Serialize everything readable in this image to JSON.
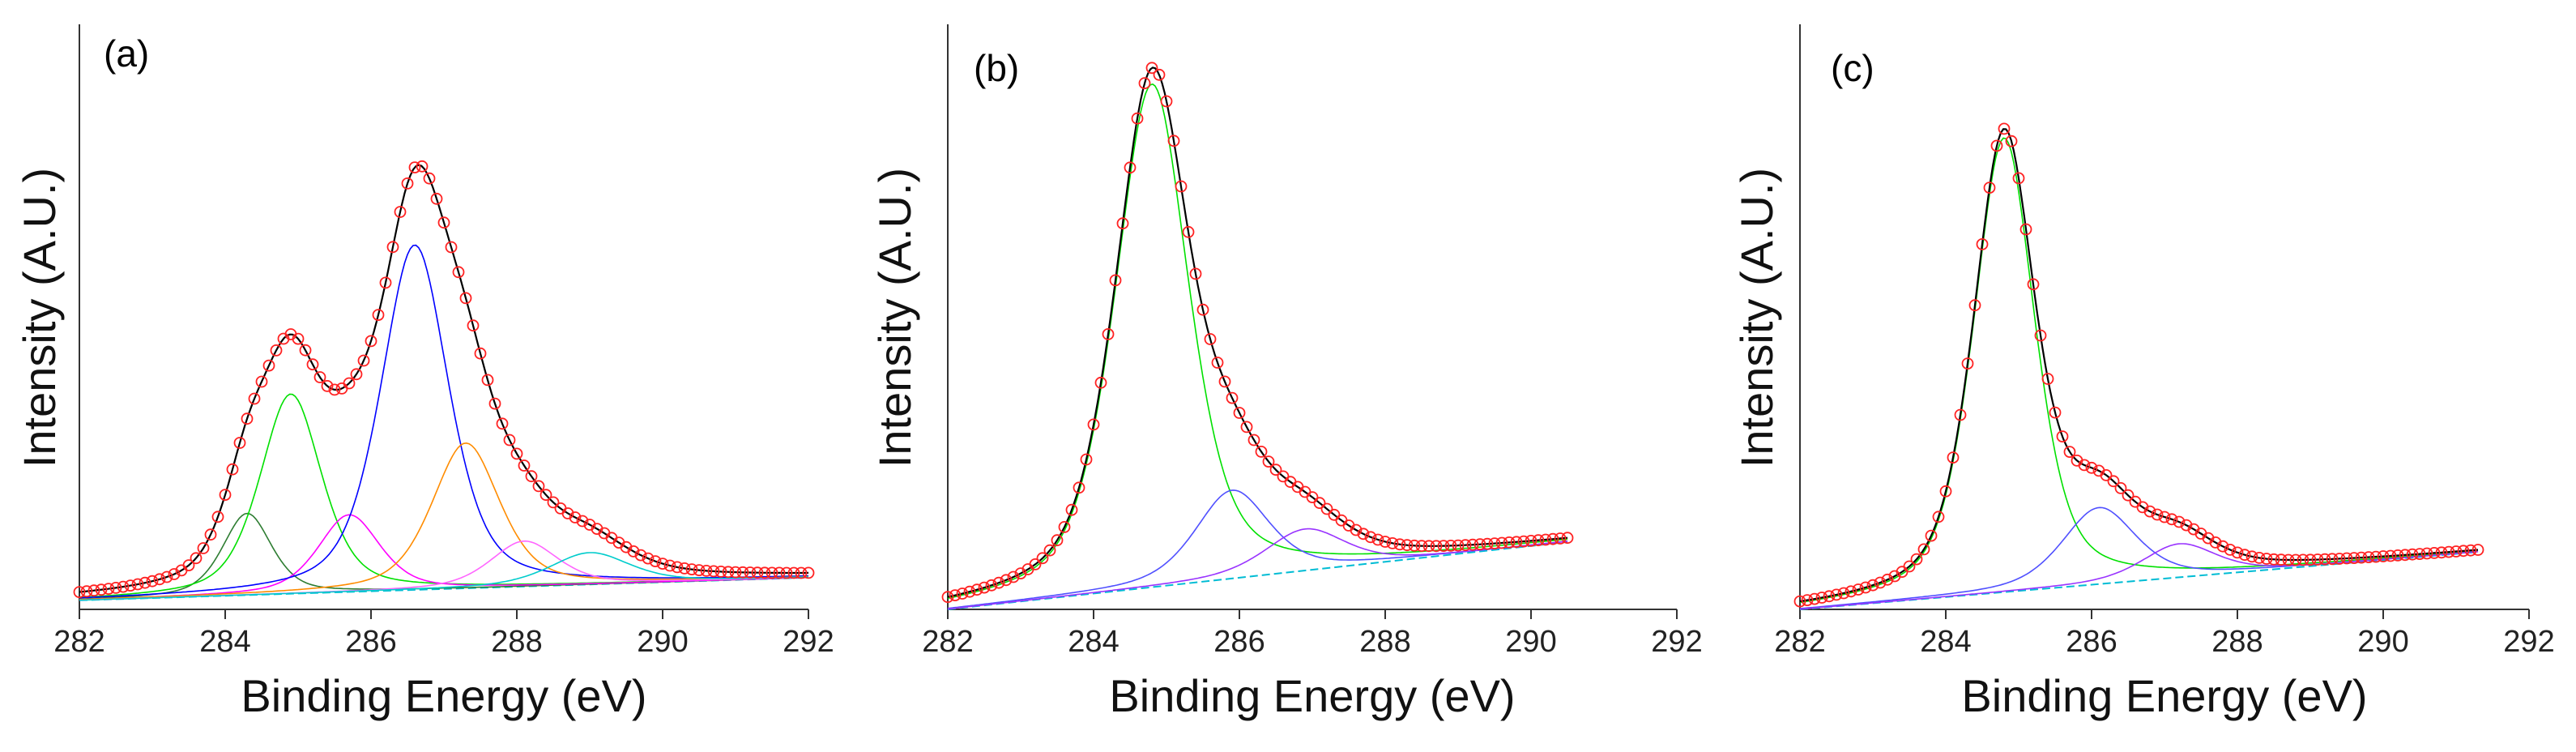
{
  "chart_data": [
    {
      "type": "line",
      "panel_label": "(a)",
      "xlabel": "Binding Energy (eV)",
      "ylabel": "Intensity (A.U.)",
      "xlim": [
        282,
        292
      ],
      "xticks": [
        "282",
        "284",
        "286",
        "288",
        "290",
        "292"
      ],
      "ylim": [
        0,
        100
      ],
      "data_range": [
        282,
        292
      ],
      "baseline": {
        "x": [
          282,
          292
        ],
        "y": [
          2,
          7
        ]
      },
      "peaks": [
        {
          "name": "peak 284.3 eV",
          "center": 284.3,
          "height": 18,
          "fwhm": 0.8,
          "color": "#2e7d32"
        },
        {
          "name": "peak 284.9 eV",
          "center": 284.9,
          "height": 44,
          "fwhm": 1.0,
          "color": "#00e000"
        },
        {
          "name": "peak 285.7 eV",
          "center": 285.7,
          "height": 17,
          "fwhm": 1.0,
          "color": "#ff00ff"
        },
        {
          "name": "peak 286.6 eV",
          "center": 286.6,
          "height": 76,
          "fwhm": 1.1,
          "color": "#0000ff"
        },
        {
          "name": "peak 287.3 eV",
          "center": 287.3,
          "height": 32,
          "fwhm": 1.1,
          "color": "#ff8c00"
        },
        {
          "name": "peak 288.1 eV",
          "center": 288.1,
          "height": 10,
          "fwhm": 1.1,
          "color": "#ff66ff"
        },
        {
          "name": "peak 289.0 eV",
          "center": 289.0,
          "height": 7,
          "fwhm": 1.3,
          "color": "#00cccc"
        }
      ],
      "series": [
        {
          "name": "Measured data",
          "style": "open circles",
          "color": "#ff2222"
        },
        {
          "name": "Fitted envelope",
          "style": "line",
          "color": "#000000"
        }
      ]
    },
    {
      "type": "line",
      "panel_label": "(b)",
      "xlabel": "Binding Energy (eV)",
      "ylabel": "Intensity (A.U.)",
      "xlim": [
        282,
        292
      ],
      "xticks": [
        "282",
        "284",
        "286",
        "288",
        "290",
        "292"
      ],
      "ylim": [
        0,
        100
      ],
      "data_range": [
        282,
        290.5
      ],
      "baseline": {
        "x": [
          282,
          290.5
        ],
        "y": [
          0,
          13
        ]
      },
      "peaks": [
        {
          "name": "peak 284.8 eV",
          "center": 284.8,
          "height": 97,
          "fwhm": 1.2,
          "color": "#00e000"
        },
        {
          "name": "peak 285.9 eV",
          "center": 285.9,
          "height": 17,
          "fwhm": 1.2,
          "color": "#5050ff"
        },
        {
          "name": "peak 286.9 eV",
          "center": 286.9,
          "height": 8,
          "fwhm": 1.3,
          "color": "#9933ff"
        }
      ],
      "series": [
        {
          "name": "Measured data",
          "style": "open circles",
          "color": "#ff2222"
        },
        {
          "name": "Fitted envelope",
          "style": "line",
          "color": "#000000"
        }
      ]
    },
    {
      "type": "line",
      "panel_label": "(c)",
      "xlabel": "Binding Energy (eV)",
      "ylabel": "Intensity (A.U.)",
      "xlim": [
        282,
        292
      ],
      "xticks": [
        "282",
        "284",
        "286",
        "288",
        "290",
        "292"
      ],
      "ylim": [
        0,
        100
      ],
      "data_range": [
        282,
        291.3
      ],
      "baseline": {
        "x": [
          282,
          291.3
        ],
        "y": [
          0,
          12
        ]
      },
      "peaks": [
        {
          "name": "peak 284.8 eV",
          "center": 284.8,
          "height": 95,
          "fwhm": 1.0,
          "color": "#00e000"
        },
        {
          "name": "peak 286.1 eV",
          "center": 286.1,
          "height": 16,
          "fwhm": 1.2,
          "color": "#5050ff"
        },
        {
          "name": "peak 287.2 eV",
          "center": 287.2,
          "height": 7,
          "fwhm": 1.2,
          "color": "#9933ff"
        }
      ],
      "series": [
        {
          "name": "Measured data",
          "style": "open circles",
          "color": "#ff2222"
        },
        {
          "name": "Fitted envelope",
          "style": "line",
          "color": "#000000"
        }
      ]
    }
  ]
}
